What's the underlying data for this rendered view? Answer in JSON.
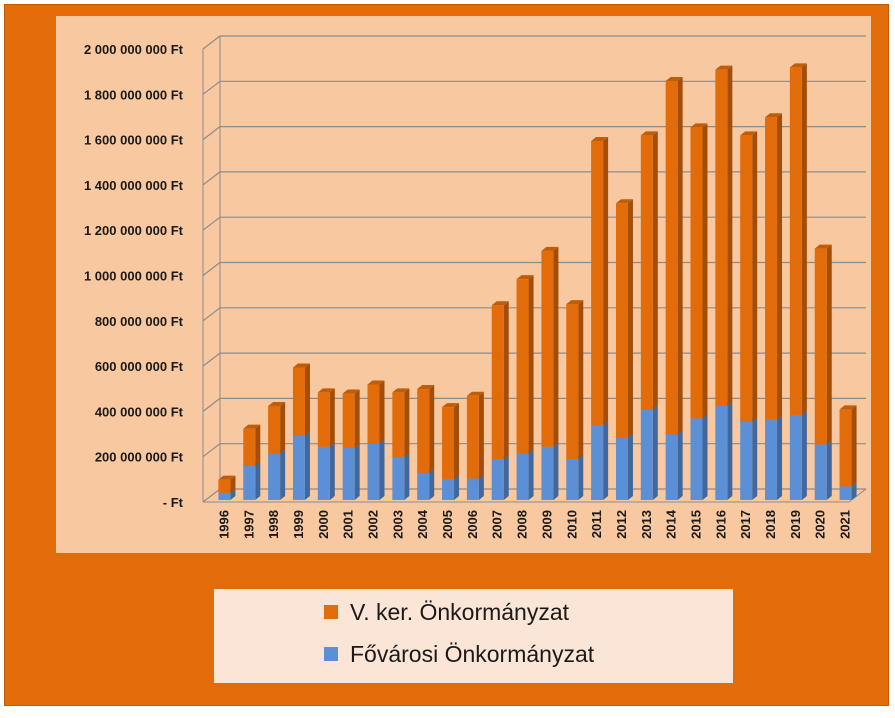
{
  "chart_data": {
    "type": "bar",
    "stacked": true,
    "three_d": true,
    "categories": [
      "1996",
      "1997",
      "1998",
      "1999",
      "2000",
      "2001",
      "2002",
      "2003",
      "2004",
      "2005",
      "2006",
      "2007",
      "2008",
      "2009",
      "2010",
      "2011",
      "2012",
      "2013",
      "2014",
      "2015",
      "2016",
      "2017",
      "2018",
      "2019",
      "2020",
      "2021"
    ],
    "series": [
      {
        "name": "Fővárosi Önkormányzat",
        "color": "#5b8fd6",
        "values": [
          30000000,
          150000000,
          205000000,
          285000000,
          235000000,
          230000000,
          250000000,
          190000000,
          120000000,
          90000000,
          95000000,
          180000000,
          205000000,
          235000000,
          180000000,
          330000000,
          275000000,
          400000000,
          290000000,
          360000000,
          415000000,
          345000000,
          355000000,
          375000000,
          245000000,
          60000000
        ]
      },
      {
        "name": "V. ker. Önkormányzat",
        "color": "#e36c0a",
        "values": [
          60000000,
          165000000,
          210000000,
          300000000,
          240000000,
          240000000,
          260000000,
          285000000,
          370000000,
          320000000,
          365000000,
          680000000,
          770000000,
          865000000,
          685000000,
          1255000000,
          1035000000,
          1210000000,
          1560000000,
          1285000000,
          1485000000,
          1265000000,
          1335000000,
          1535000000,
          865000000,
          340000000
        ]
      }
    ],
    "ylim": [
      0,
      2000000000
    ],
    "yticks": [
      0,
      200000000,
      400000000,
      600000000,
      800000000,
      1000000000,
      1200000000,
      1400000000,
      1600000000,
      1800000000,
      2000000000
    ],
    "ytick_labels": [
      "-  Ft",
      "200 000 000 Ft",
      "400 000 000 Ft",
      "600 000 000 Ft",
      "800 000 000 Ft",
      "1 000 000 000 Ft",
      "1 200 000 000 Ft",
      "1 400 000 000 Ft",
      "1 600 000 000 Ft",
      "1 800 000 000 Ft",
      "2 000 000 000 Ft"
    ],
    "grid": true,
    "legend_position": "bottom",
    "colors": {
      "plot_background": "#f8c8a0",
      "frame_background": "#e36c0a",
      "legend_background": "#fbe5d6",
      "gridline": "#8c8c8c"
    }
  },
  "legend": {
    "items": [
      {
        "label": "V. ker. Önkormányzat",
        "color": "#e36c0a"
      },
      {
        "label": "Fővárosi Önkormányzat",
        "color": "#5b8fd6"
      }
    ]
  }
}
